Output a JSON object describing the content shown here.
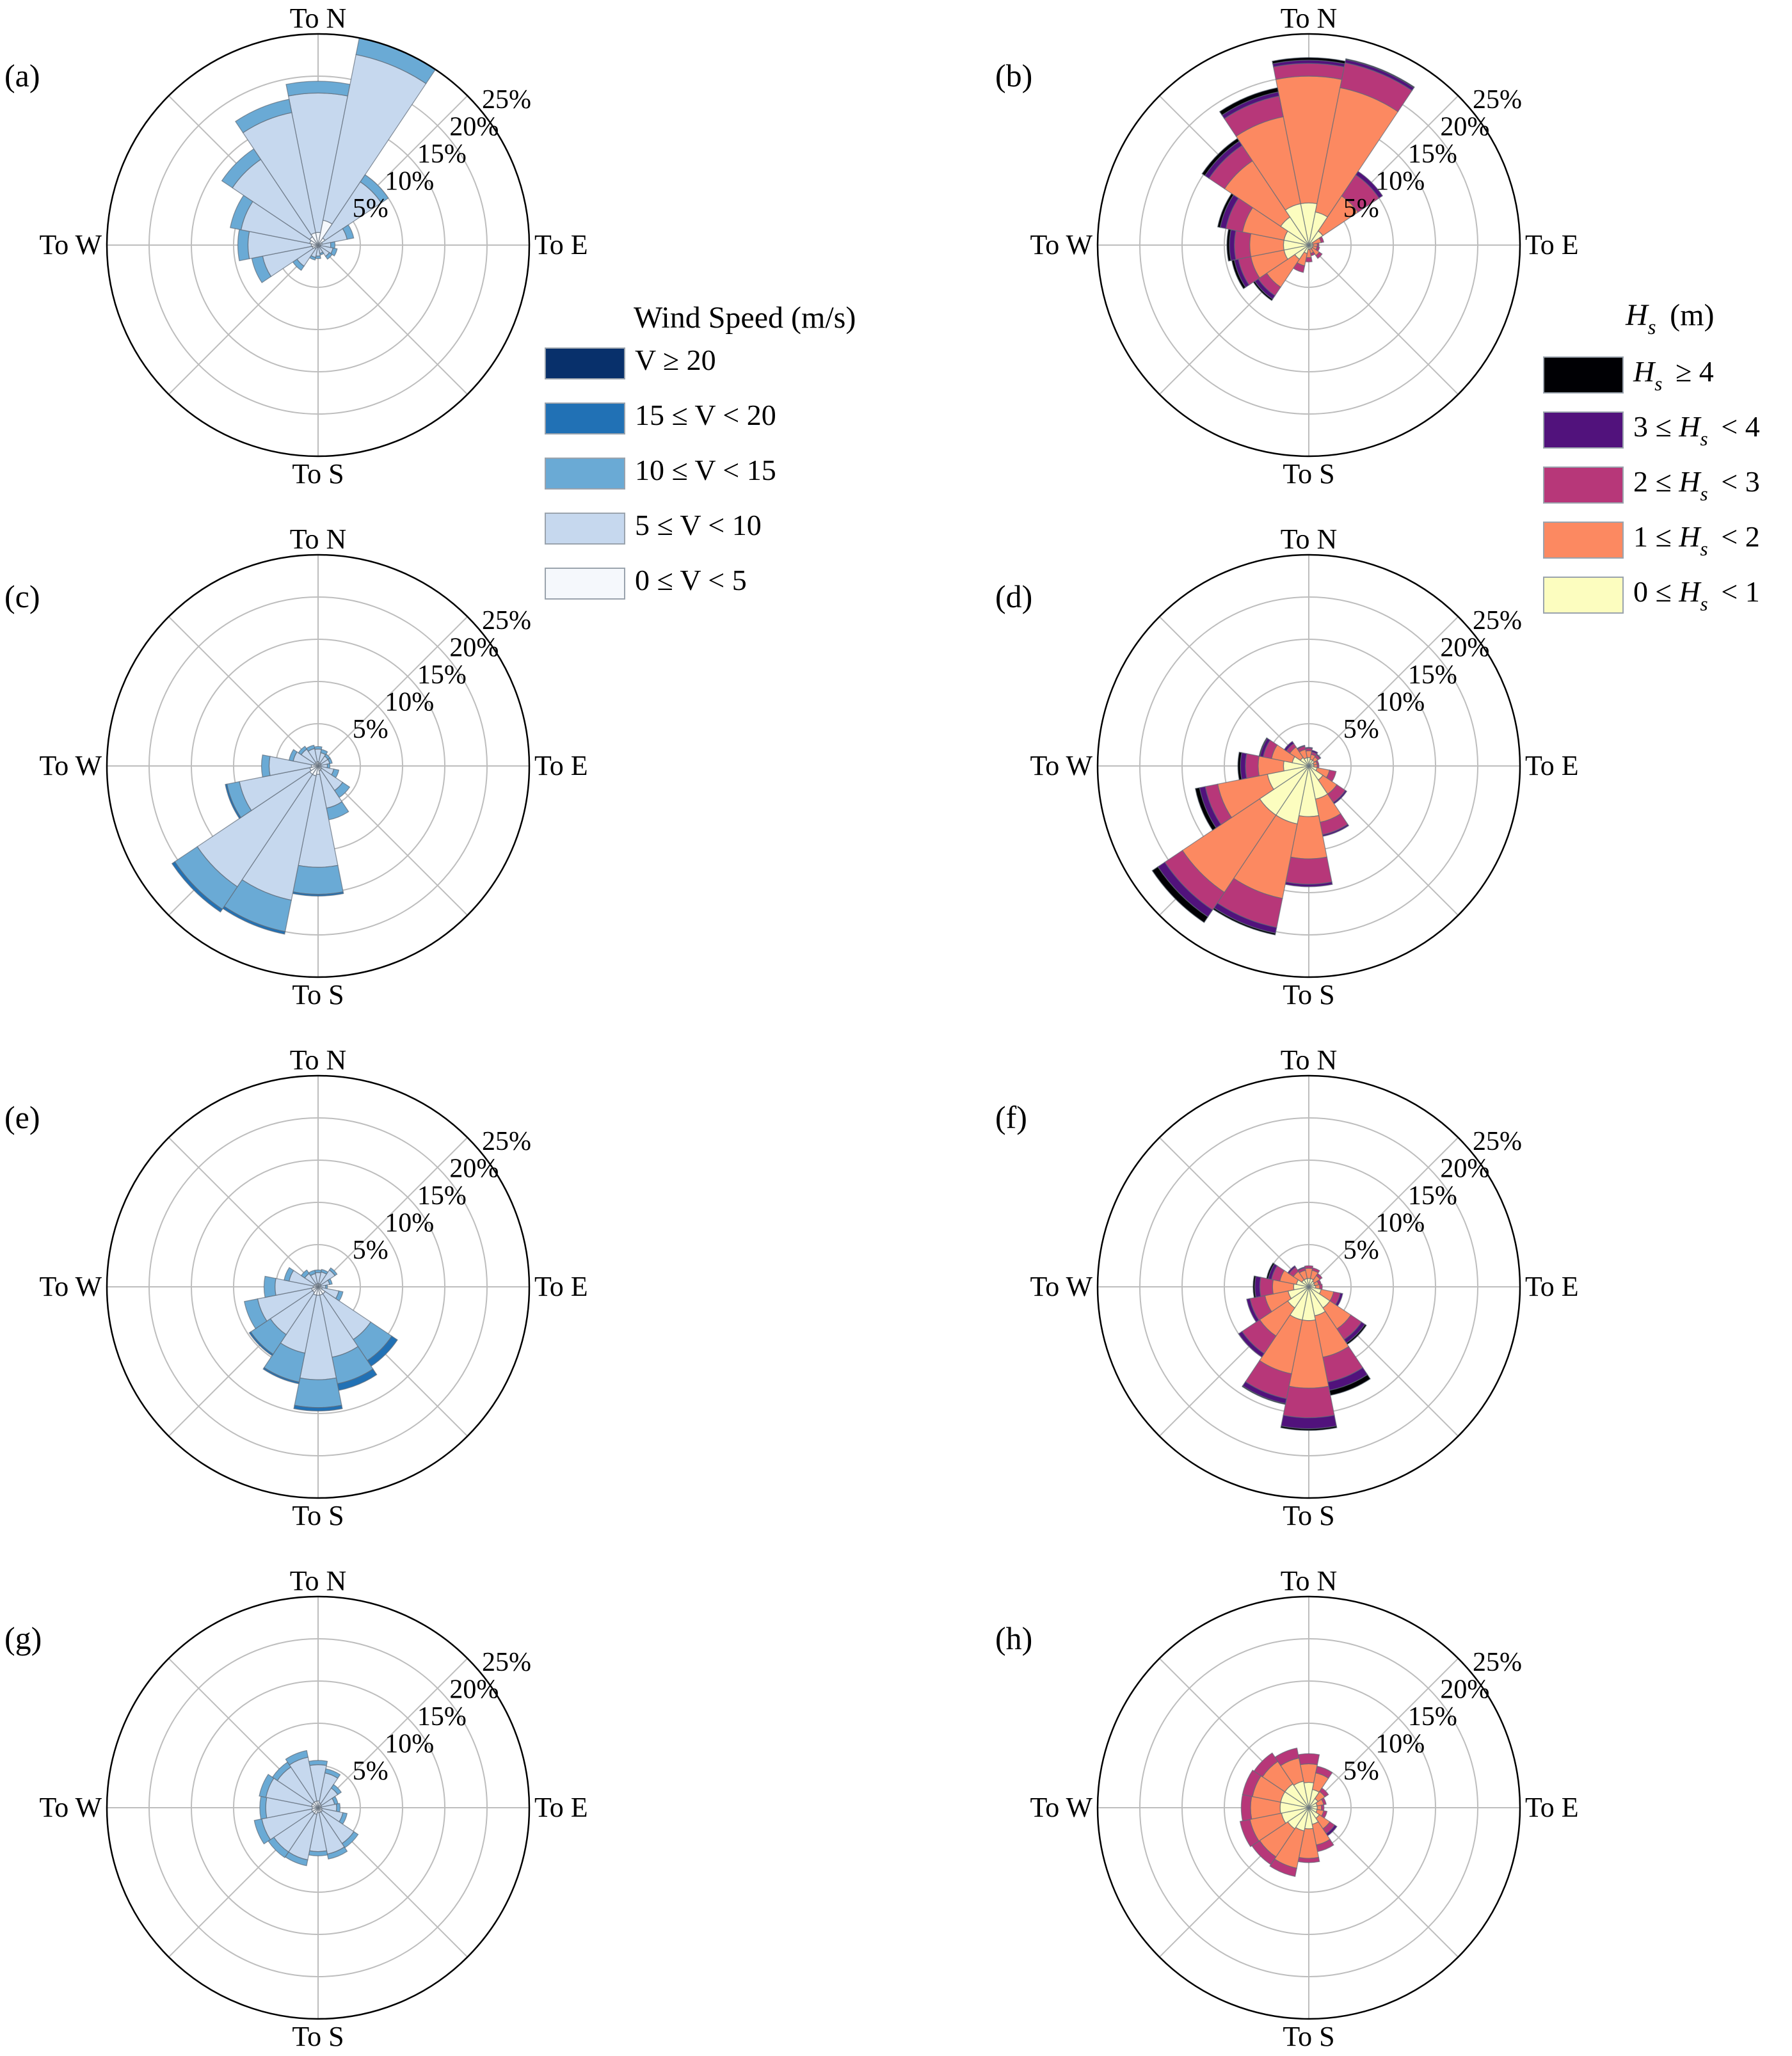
{
  "colors": {
    "wind": [
      "#f5f8fc",
      "#c6d8ee",
      "#6aaad5",
      "#2171b5",
      "#08306b"
    ],
    "wave": [
      "#fcfdbf",
      "#fc8961",
      "#b73779",
      "#51127c",
      "#000004"
    ],
    "grid": "#bdbdbd",
    "outline": "#000000"
  },
  "legend_wind": {
    "title": "Wind Speed (m/s)",
    "items": [
      "V ≥ 20",
      "15 ≤ V < 20",
      "10 ≤ V < 15",
      "5 ≤ V < 10",
      "0 ≤ V < 5"
    ]
  },
  "legend_wave": {
    "title": "H_s (m)",
    "items": [
      "H_s ≥ 4",
      "3 ≤ H_s < 4",
      "2 ≤ H_s < 3",
      "1 ≤ H_s < 2",
      "0 ≤ H_s < 1"
    ]
  },
  "chart_data": [
    {
      "type": "polar-stacked-bar",
      "panel": "(a)",
      "palette": "wind",
      "compass": [
        "To N",
        "To E",
        "To S",
        "To W"
      ],
      "rings": [
        5,
        10,
        15,
        20,
        25
      ],
      "ring_labels": [
        "5%",
        "10%",
        "15%",
        "20%",
        "25%"
      ],
      "rlim": [
        0,
        25
      ],
      "sector_order": "16 sectors clockwise from To N",
      "bins": [
        "0 ≤ V < 5",
        "5 ≤ V < 10",
        "10 ≤ V < 15",
        "15 ≤ V < 20",
        "V ≥ 20"
      ],
      "sectors": [
        [
          1.5,
          16.5,
          1.4,
          0,
          0
        ],
        [
          3,
          20,
          2,
          0,
          0
        ],
        [
          1,
          8,
          1,
          0,
          0
        ],
        [
          0.5,
          3,
          0.8,
          0,
          0
        ],
        [
          0.3,
          1.2,
          0.5,
          0,
          0
        ],
        [
          0.3,
          1.5,
          0.5,
          0,
          0
        ],
        [
          0.3,
          1.3,
          0.4,
          0,
          0
        ],
        [
          0.2,
          0.8,
          0.2,
          0,
          0
        ],
        [
          0.3,
          1,
          0.3,
          0,
          0
        ],
        [
          0.3,
          1.2,
          0.3,
          0,
          0
        ],
        [
          0.5,
          2.5,
          0.6,
          0,
          0
        ],
        [
          0.7,
          6,
          1.3,
          0,
          0
        ],
        [
          0.8,
          7.5,
          1.2,
          0,
          0
        ],
        [
          1,
          8.3,
          1.3,
          0,
          0
        ],
        [
          1.2,
          11,
          1.5,
          0,
          0
        ],
        [
          1.5,
          14.5,
          1.6,
          0,
          0
        ]
      ]
    },
    {
      "type": "polar-stacked-bar",
      "panel": "(b)",
      "palette": "wave",
      "compass": [
        "To N",
        "To E",
        "To S",
        "To W"
      ],
      "rings": [
        5,
        10,
        15,
        20,
        25
      ],
      "ring_labels": [
        "5%",
        "10%",
        "15%",
        "20%",
        "25%"
      ],
      "rlim": [
        0,
        25
      ],
      "sector_order": "16 sectors clockwise from To N",
      "bins": [
        "0 ≤ H_s < 1",
        "1 ≤ H_s < 2",
        "2 ≤ H_s < 3",
        "3 ≤ H_s < 4",
        "H_s ≥ 4"
      ],
      "sectors": [
        [
          5,
          15,
          1.5,
          0.4,
          0.3
        ],
        [
          4,
          15,
          3,
          0.4,
          0.1
        ],
        [
          2,
          5,
          3,
          0.5,
          0
        ],
        [
          0.5,
          1,
          0.3,
          0,
          0
        ],
        [
          0.5,
          0.5,
          0.2,
          0,
          0
        ],
        [
          0.5,
          0.5,
          0.3,
          0,
          0
        ],
        [
          0.5,
          1,
          0.4,
          0,
          0
        ],
        [
          0.5,
          0.5,
          0.3,
          0,
          0
        ],
        [
          0.5,
          1,
          0.5,
          0,
          0
        ],
        [
          1,
          1.5,
          0.8,
          0,
          0
        ],
        [
          2,
          4,
          1.2,
          0.5,
          0.2
        ],
        [
          3,
          4,
          1.5,
          0.5,
          0.3
        ],
        [
          3,
          4,
          1.8,
          0.6,
          0.3
        ],
        [
          3,
          5,
          2,
          0.7,
          0.3
        ],
        [
          4,
          8,
          2.2,
          0.6,
          0.4
        ],
        [
          5,
          10.5,
          2.5,
          0.5,
          0.5
        ]
      ]
    },
    {
      "type": "polar-stacked-bar",
      "panel": "(c)",
      "palette": "wind",
      "compass": [
        "To N",
        "To E",
        "To S",
        "To W"
      ],
      "rings": [
        5,
        10,
        15,
        20,
        25
      ],
      "ring_labels": [
        "5%",
        "10%",
        "15%",
        "20%",
        "25%"
      ],
      "rlim": [
        0,
        25
      ],
      "sector_order": "16 sectors clockwise from To N",
      "bins": [
        "0 ≤ V < 5",
        "5 ≤ V < 10",
        "10 ≤ V < 15",
        "15 ≤ V < 20",
        "V ≥ 20"
      ],
      "sectors": [
        [
          0.5,
          1.5,
          0.3,
          0,
          0
        ],
        [
          0.4,
          1.2,
          0.4,
          0,
          0
        ],
        [
          0.4,
          1,
          0.3,
          0,
          0
        ],
        [
          0.4,
          1,
          0.3,
          0,
          0
        ],
        [
          0.3,
          0.8,
          0.3,
          0,
          0
        ],
        [
          0.4,
          1.5,
          0.6,
          0,
          0
        ],
        [
          0.5,
          3,
          1,
          0,
          0
        ],
        [
          0.6,
          4.5,
          1.4,
          0,
          0
        ],
        [
          1,
          11,
          3.2,
          0.2,
          0
        ],
        [
          1.2,
          15,
          3.8,
          0.3,
          0
        ],
        [
          1.2,
          16,
          3.2,
          0.4,
          0
        ],
        [
          1,
          8.5,
          1.5,
          0.2,
          0
        ],
        [
          0.8,
          5,
          0.9,
          0,
          0
        ],
        [
          0.5,
          2.5,
          0.5,
          0,
          0
        ],
        [
          0.4,
          2,
          0.4,
          0,
          0
        ],
        [
          0.5,
          1.6,
          0.4,
          0,
          0
        ]
      ]
    },
    {
      "type": "polar-stacked-bar",
      "panel": "(d)",
      "palette": "wave",
      "compass": [
        "To N",
        "To E",
        "To S",
        "To W"
      ],
      "rings": [
        5,
        10,
        15,
        20,
        25
      ],
      "ring_labels": [
        "5%",
        "10%",
        "15%",
        "20%",
        "25%"
      ],
      "rlim": [
        0,
        25
      ],
      "sector_order": "16 sectors clockwise from To N",
      "bins": [
        "0 ≤ H_s < 1",
        "1 ≤ H_s < 2",
        "2 ≤ H_s < 3",
        "3 ≤ H_s < 4",
        "H_s ≥ 4"
      ],
      "sectors": [
        [
          1,
          0.8,
          0.3,
          0.1,
          0
        ],
        [
          0.8,
          0.6,
          0.3,
          0.2,
          0
        ],
        [
          0.8,
          0.5,
          0.3,
          0.1,
          0
        ],
        [
          0.6,
          0.4,
          0.2,
          0,
          0
        ],
        [
          0.6,
          0.4,
          0.2,
          0,
          0
        ],
        [
          1,
          1.5,
          0.8,
          0,
          0
        ],
        [
          2,
          2,
          1.2,
          0.2,
          0
        ],
        [
          4,
          2.8,
          1.5,
          0.2,
          0
        ],
        [
          6,
          5,
          3,
          0.3,
          0
        ],
        [
          7,
          9,
          3.5,
          0.7,
          0.2
        ],
        [
          7,
          11,
          2.5,
          1,
          0.8
        ],
        [
          5,
          6,
          1.5,
          0.7,
          0.5
        ],
        [
          3,
          3,
          1.5,
          0.6,
          0.3
        ],
        [
          2,
          2.5,
          1,
          0.4,
          0.1
        ],
        [
          1.2,
          1.5,
          0.5,
          0.3,
          0
        ],
        [
          1,
          1,
          0.4,
          0.1,
          0
        ]
      ]
    },
    {
      "type": "polar-stacked-bar",
      "panel": "(e)",
      "palette": "wind",
      "compass": [
        "To N",
        "To E",
        "To S",
        "To W"
      ],
      "rings": [
        5,
        10,
        15,
        20,
        25
      ],
      "ring_labels": [
        "5%",
        "10%",
        "15%",
        "20%",
        "25%"
      ],
      "rlim": [
        0,
        25
      ],
      "sector_order": "16 sectors clockwise from To N",
      "bins": [
        "0 ≤ V < 5",
        "5 ≤ V < 10",
        "10 ≤ V < 15",
        "15 ≤ V < 20",
        "V ≥ 20"
      ],
      "sectors": [
        [
          0.4,
          1.3,
          0.3,
          0,
          0
        ],
        [
          0.4,
          1.4,
          0.3,
          0,
          0
        ],
        [
          0.4,
          2,
          0.3,
          0,
          0
        ],
        [
          0.4,
          1,
          0.3,
          0,
          0
        ],
        [
          0.3,
          0.6,
          0.2,
          0,
          0
        ],
        [
          0.5,
          2,
          0.5,
          0,
          0
        ],
        [
          1,
          6.5,
          3,
          0.8,
          0
        ],
        [
          1,
          7.5,
          3.2,
          0.8,
          0
        ],
        [
          1,
          10,
          3.3,
          0.4,
          0
        ],
        [
          1,
          7,
          3.5,
          0.2,
          0
        ],
        [
          0.8,
          6,
          2.8,
          0.2,
          0
        ],
        [
          0.8,
          6.5,
          1.6,
          0,
          0
        ],
        [
          0.6,
          4.5,
          1.3,
          0,
          0
        ],
        [
          0.5,
          3,
          0.6,
          0,
          0
        ],
        [
          0.4,
          1.5,
          0.5,
          0,
          0
        ],
        [
          0.4,
          1.2,
          0.4,
          0,
          0
        ]
      ]
    },
    {
      "type": "polar-stacked-bar",
      "panel": "(f)",
      "palette": "wave",
      "compass": [
        "To N",
        "To E",
        "To S",
        "To W"
      ],
      "rings": [
        5,
        10,
        15,
        20,
        25
      ],
      "ring_labels": [
        "5%",
        "10%",
        "15%",
        "20%",
        "25%"
      ],
      "rlim": [
        0,
        25
      ],
      "sector_order": "16 sectors clockwise from To N",
      "bins": [
        "0 ≤ H_s < 1",
        "1 ≤ H_s < 2",
        "2 ≤ H_s < 3",
        "3 ≤ H_s < 4",
        "H_s ≥ 4"
      ],
      "sectors": [
        [
          1,
          1.2,
          0.3,
          0,
          0
        ],
        [
          1,
          1,
          0.3,
          0,
          0
        ],
        [
          0.8,
          0.8,
          0.3,
          0,
          0
        ],
        [
          0.7,
          0.5,
          0.3,
          0,
          0
        ],
        [
          0.8,
          0.5,
          0.3,
          0,
          0
        ],
        [
          1.5,
          1.5,
          0.8,
          0.3,
          0
        ],
        [
          3,
          3,
          1.5,
          0.5,
          0.2
        ],
        [
          3.5,
          5,
          3,
          1,
          0.6
        ],
        [
          4,
          8,
          3.5,
          1.3,
          0.2
        ],
        [
          4,
          6.5,
          3,
          0.6,
          0.1
        ],
        [
          3,
          4,
          2.5,
          0.5,
          0
        ],
        [
          2.5,
          2.8,
          1.8,
          0.4,
          0
        ],
        [
          1.8,
          2.5,
          1.5,
          0.6,
          0.2
        ],
        [
          1.5,
          2,
          1,
          0.4,
          0.2
        ],
        [
          1,
          1.2,
          0.6,
          0.2,
          0
        ],
        [
          1,
          1,
          0.3,
          0.1,
          0
        ]
      ]
    },
    {
      "type": "polar-stacked-bar",
      "panel": "(g)",
      "palette": "wind",
      "compass": [
        "To N",
        "To E",
        "To S",
        "To W"
      ],
      "rings": [
        5,
        10,
        15,
        20,
        25
      ],
      "ring_labels": [
        "5%",
        "10%",
        "15%",
        "20%",
        "25%"
      ],
      "rlim": [
        0,
        25
      ],
      "sector_order": "16 sectors clockwise from To N",
      "bins": [
        "0 ≤ V < 5",
        "5 ≤ V < 10",
        "10 ≤ V < 15",
        "15 ≤ V < 20",
        "V ≥ 20"
      ],
      "sectors": [
        [
          0.8,
          4.3,
          0.5,
          0,
          0
        ],
        [
          0.6,
          3.6,
          0.5,
          0,
          0
        ],
        [
          0.5,
          2.3,
          0.5,
          0,
          0
        ],
        [
          0.4,
          1.6,
          0.4,
          0,
          0
        ],
        [
          0.4,
          1.8,
          0.4,
          0,
          0
        ],
        [
          0.5,
          2.5,
          0.5,
          0,
          0
        ],
        [
          0.6,
          4.5,
          0.6,
          0,
          0
        ],
        [
          0.6,
          5,
          0.6,
          0,
          0
        ],
        [
          0.6,
          4.6,
          0.5,
          0,
          0
        ],
        [
          0.8,
          5.5,
          0.7,
          0,
          0
        ],
        [
          0.8,
          5.5,
          0.8,
          0,
          0
        ],
        [
          0.8,
          6,
          0.9,
          0,
          0
        ],
        [
          0.7,
          5.5,
          0.7,
          0,
          0
        ],
        [
          0.8,
          5.5,
          0.8,
          0,
          0
        ],
        [
          0.8,
          5,
          0.7,
          0,
          0
        ],
        [
          0.8,
          5.3,
          0.8,
          0,
          0
        ]
      ]
    },
    {
      "type": "polar-stacked-bar",
      "panel": "(h)",
      "palette": "wave",
      "compass": [
        "To N",
        "To E",
        "To S",
        "To W"
      ],
      "rings": [
        5,
        10,
        15,
        20,
        25
      ],
      "ring_labels": [
        "5%",
        "10%",
        "15%",
        "20%",
        "25%"
      ],
      "rlim": [
        0,
        25
      ],
      "sector_order": "16 sectors clockwise from To N",
      "bins": [
        "0 ≤ H_s < 1",
        "1 ≤ H_s < 2",
        "2 ≤ H_s < 3",
        "3 ≤ H_s < 4",
        "H_s ≥ 4"
      ],
      "sectors": [
        [
          3,
          2.2,
          1.2,
          0,
          0
        ],
        [
          2.2,
          2,
          0.8,
          0,
          0
        ],
        [
          1.3,
          1,
          0.5,
          0,
          0
        ],
        [
          1,
          0.8,
          0.3,
          0,
          0
        ],
        [
          1,
          0.5,
          0.3,
          0,
          0
        ],
        [
          1,
          0.8,
          0.4,
          0,
          0
        ],
        [
          1.5,
          1.5,
          0.7,
          0.3,
          0
        ],
        [
          2,
          2.5,
          0.8,
          0,
          0
        ],
        [
          2.5,
          3.5,
          0.5,
          0,
          0
        ],
        [
          2.8,
          4.5,
          1,
          0,
          0
        ],
        [
          3,
          4,
          1.1,
          0,
          0
        ],
        [
          3.3,
          3.8,
          1.2,
          0,
          0
        ],
        [
          3.4,
          3.5,
          1.1,
          0,
          0
        ],
        [
          3.4,
          3.4,
          1.2,
          0,
          0
        ],
        [
          3.4,
          3.2,
          1.2,
          0,
          0
        ],
        [
          3.2,
          2.8,
          1.2,
          0,
          0
        ]
      ]
    }
  ]
}
